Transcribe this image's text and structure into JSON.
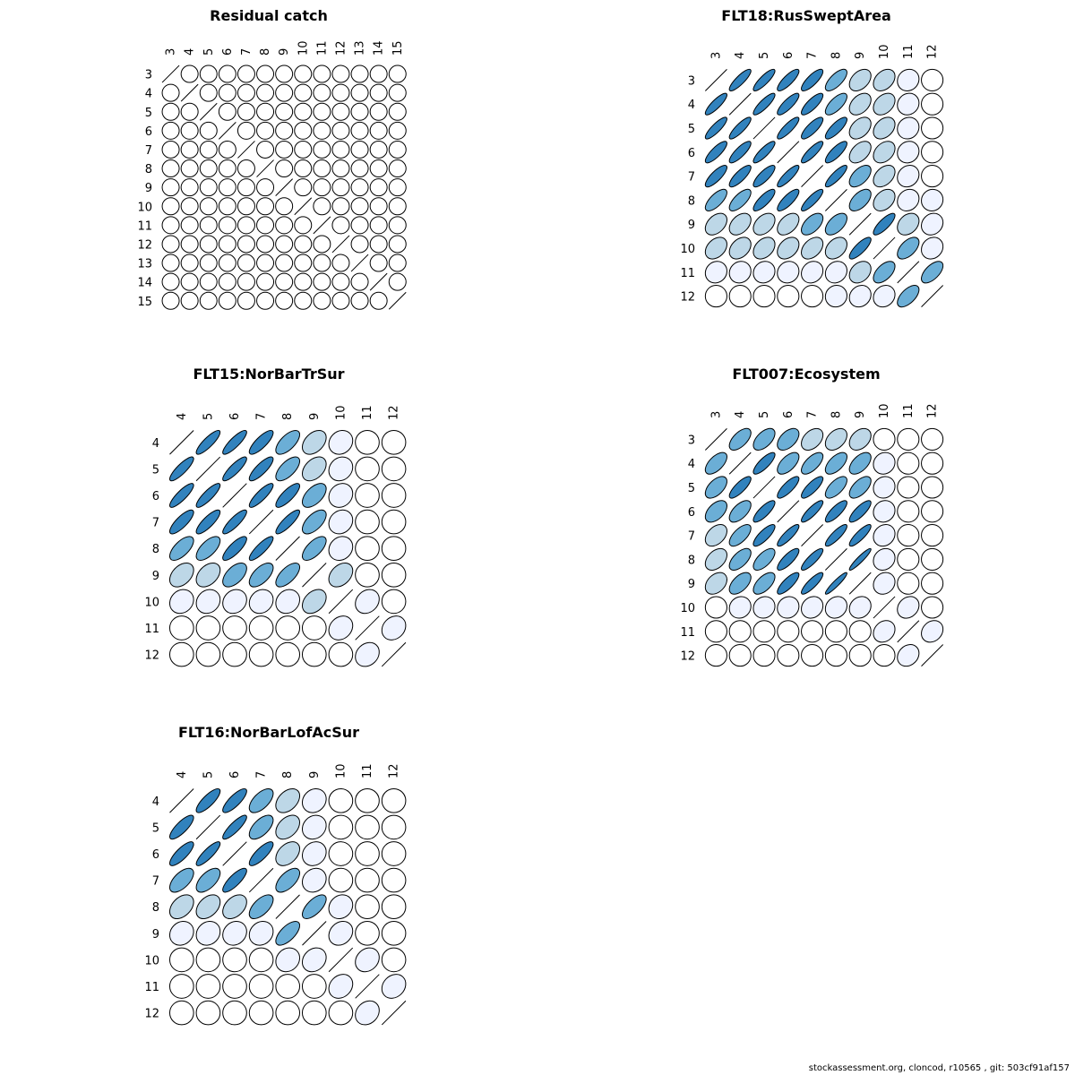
{
  "footer": "stockassessment.org, cloncod, r10565 , git: 503cf91af157",
  "colors": [
    "#ffffff",
    "#eff3ff",
    "#bdd7e7",
    "#6baed6",
    "#3182bd"
  ],
  "chart_data": [
    {
      "type": "correlation-ellipse-matrix",
      "title": "Residual catch",
      "labels": [
        "3",
        "4",
        "5",
        "6",
        "7",
        "8",
        "9",
        "10",
        "11",
        "12",
        "13",
        "14",
        "15"
      ],
      "matrix": [
        [
          1,
          0,
          0,
          0,
          0,
          0,
          0,
          0,
          0,
          0,
          0,
          0,
          0
        ],
        [
          0,
          1,
          0,
          0,
          0,
          0,
          0,
          0,
          0,
          0,
          0,
          0,
          0
        ],
        [
          0,
          0,
          1,
          0,
          0,
          0,
          0,
          0,
          0,
          0,
          0,
          0,
          0
        ],
        [
          0,
          0,
          0,
          1,
          0,
          0,
          0,
          0,
          0,
          0,
          0,
          0,
          0
        ],
        [
          0,
          0,
          0,
          0,
          1,
          0,
          0,
          0,
          0,
          0,
          0,
          0,
          0
        ],
        [
          0,
          0,
          0,
          0,
          0,
          1,
          0,
          0,
          0,
          0,
          0,
          0,
          0
        ],
        [
          0,
          0,
          0,
          0,
          0,
          0,
          1,
          0,
          0,
          0,
          0,
          0,
          0
        ],
        [
          0,
          0,
          0,
          0,
          0,
          0,
          0,
          1,
          0,
          0,
          0,
          0,
          0
        ],
        [
          0,
          0,
          0,
          0,
          0,
          0,
          0,
          0,
          1,
          0,
          0,
          0,
          0
        ],
        [
          0,
          0,
          0,
          0,
          0,
          0,
          0,
          0,
          0,
          1,
          0,
          0,
          0
        ],
        [
          0,
          0,
          0,
          0,
          0,
          0,
          0,
          0,
          0,
          0,
          1,
          0,
          0
        ],
        [
          0,
          0,
          0,
          0,
          0,
          0,
          0,
          0,
          0,
          0,
          0,
          1,
          0
        ],
        [
          0,
          0,
          0,
          0,
          0,
          0,
          0,
          0,
          0,
          0,
          0,
          0,
          1
        ]
      ]
    },
    {
      "type": "correlation-ellipse-matrix",
      "title": "FLT18:RusSweptArea",
      "labels": [
        "3",
        "4",
        "5",
        "6",
        "7",
        "8",
        "9",
        "10",
        "11",
        "12"
      ],
      "matrix": [
        [
          1,
          0.85,
          0.85,
          0.82,
          0.8,
          0.7,
          0.4,
          0.35,
          0.1,
          0
        ],
        [
          0.85,
          1,
          0.85,
          0.82,
          0.8,
          0.7,
          0.4,
          0.35,
          0.1,
          0
        ],
        [
          0.85,
          0.85,
          1,
          0.85,
          0.8,
          0.8,
          0.4,
          0.35,
          0.1,
          0
        ],
        [
          0.82,
          0.82,
          0.85,
          1,
          0.85,
          0.8,
          0.45,
          0.35,
          0.1,
          0
        ],
        [
          0.8,
          0.8,
          0.8,
          0.85,
          1,
          0.85,
          0.55,
          0.4,
          0.15,
          0
        ],
        [
          0.7,
          0.7,
          0.8,
          0.8,
          0.85,
          1,
          0.55,
          0.35,
          0.15,
          0.05
        ],
        [
          0.4,
          0.4,
          0.4,
          0.45,
          0.55,
          0.55,
          1,
          0.8,
          0.3,
          0.15
        ],
        [
          0.35,
          0.35,
          0.35,
          0.35,
          0.4,
          0.35,
          0.8,
          1,
          0.55,
          0.15
        ],
        [
          0.1,
          0.1,
          0.1,
          0.1,
          0.15,
          0.15,
          0.3,
          0.55,
          1,
          0.6
        ],
        [
          0,
          0,
          0,
          0,
          0,
          0.05,
          0.15,
          0.15,
          0.6,
          1
        ]
      ]
    },
    {
      "type": "correlation-ellipse-matrix",
      "title": "FLT15:NorBarTrSur",
      "labels": [
        "4",
        "5",
        "6",
        "7",
        "8",
        "9",
        "10",
        "11",
        "12"
      ],
      "matrix": [
        [
          1,
          0.85,
          0.85,
          0.8,
          0.65,
          0.4,
          0.15,
          0,
          0
        ],
        [
          0.85,
          1,
          0.85,
          0.82,
          0.65,
          0.4,
          0.15,
          0,
          0
        ],
        [
          0.85,
          0.85,
          1,
          0.85,
          0.8,
          0.55,
          0.15,
          0,
          0
        ],
        [
          0.8,
          0.82,
          0.85,
          1,
          0.85,
          0.6,
          0.15,
          0,
          0
        ],
        [
          0.65,
          0.65,
          0.8,
          0.85,
          1,
          0.65,
          0.15,
          0,
          0
        ],
        [
          0.4,
          0.4,
          0.55,
          0.6,
          0.65,
          1,
          0.35,
          0,
          0
        ],
        [
          0.15,
          0.15,
          0.15,
          0.15,
          0.15,
          0.35,
          1,
          0.2,
          0
        ],
        [
          0,
          0,
          0,
          0,
          0,
          0,
          0.2,
          1,
          0.2
        ],
        [
          0,
          0,
          0,
          0,
          0,
          0,
          0,
          0.2,
          1
        ]
      ]
    },
    {
      "type": "correlation-ellipse-matrix",
      "title": "FLT007:Ecosystem",
      "labels": [
        "3",
        "4",
        "5",
        "6",
        "7",
        "8",
        "9",
        "10",
        "11",
        "12"
      ],
      "matrix": [
        [
          1,
          0.6,
          0.55,
          0.5,
          0.4,
          0.4,
          0.35,
          0,
          0,
          0
        ],
        [
          0.6,
          1,
          0.8,
          0.6,
          0.65,
          0.6,
          0.55,
          0.1,
          0,
          0
        ],
        [
          0.55,
          0.8,
          1,
          0.8,
          0.8,
          0.65,
          0.6,
          0.1,
          0,
          0
        ],
        [
          0.5,
          0.6,
          0.8,
          1,
          0.85,
          0.8,
          0.8,
          0.1,
          0,
          0
        ],
        [
          0.4,
          0.65,
          0.8,
          0.85,
          1,
          0.85,
          0.85,
          0.15,
          0,
          0
        ],
        [
          0.4,
          0.6,
          0.65,
          0.8,
          0.85,
          1,
          0.93,
          0.15,
          0,
          0
        ],
        [
          0.35,
          0.55,
          0.6,
          0.8,
          0.85,
          0.93,
          1,
          0.15,
          0,
          0
        ],
        [
          0,
          0.1,
          0.1,
          0.1,
          0.15,
          0.15,
          0.15,
          1,
          0.2,
          0
        ],
        [
          0,
          0,
          0,
          0,
          0,
          0,
          0,
          0.2,
          1,
          0.2
        ],
        [
          0,
          0,
          0,
          0,
          0,
          0,
          0,
          0,
          0.2,
          1
        ]
      ]
    },
    {
      "type": "correlation-ellipse-matrix",
      "title": "FLT16:NorBarLofAcSur",
      "labels": [
        "4",
        "5",
        "6",
        "7",
        "8",
        "9",
        "10",
        "11",
        "12"
      ],
      "matrix": [
        [
          1,
          0.8,
          0.8,
          0.6,
          0.4,
          0.15,
          0,
          0,
          0
        ],
        [
          0.8,
          1,
          0.85,
          0.6,
          0.4,
          0.15,
          0,
          0,
          0
        ],
        [
          0.8,
          0.85,
          1,
          0.8,
          0.4,
          0.15,
          0,
          0,
          0
        ],
        [
          0.6,
          0.6,
          0.8,
          1,
          0.6,
          0.15,
          0,
          0,
          0
        ],
        [
          0.4,
          0.4,
          0.4,
          0.6,
          1,
          0.65,
          0.15,
          0,
          0
        ],
        [
          0.15,
          0.15,
          0.15,
          0.15,
          0.65,
          1,
          0.2,
          0,
          0
        ],
        [
          0,
          0,
          0,
          0,
          0.15,
          0.2,
          1,
          0.2,
          0
        ],
        [
          0,
          0,
          0,
          0,
          0,
          0,
          0.2,
          1,
          0.2
        ],
        [
          0,
          0,
          0,
          0,
          0,
          0,
          0,
          0.2,
          1
        ]
      ]
    }
  ]
}
